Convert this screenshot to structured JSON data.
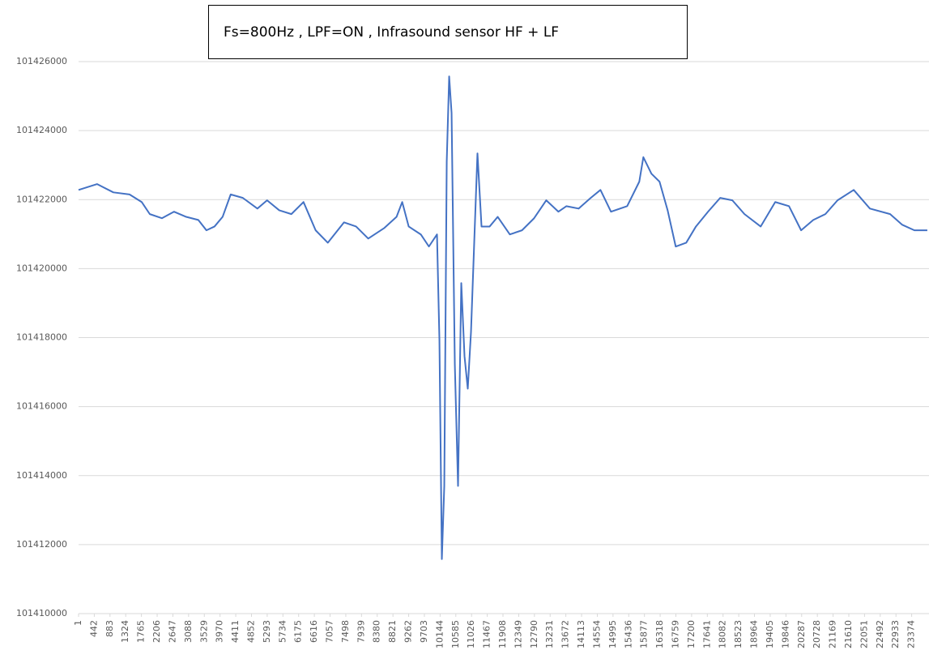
{
  "chart_data": {
    "type": "line",
    "title": "Fs=800Hz , LPF=ON , Infrasound sensor HF + LF",
    "color": "#4472c4",
    "grid": true,
    "x": [
      1,
      523,
      977,
      1431,
      1772,
      1999,
      2339,
      2680,
      3020,
      3361,
      3588,
      3815,
      4042,
      4269,
      4609,
      5018,
      5290,
      5631,
      5971,
      6312,
      6652,
      6993,
      7447,
      7787,
      8128,
      8582,
      8922,
      9081,
      9263,
      9603,
      9830,
      10057,
      10125,
      10193,
      10261,
      10330,
      10398,
      10466,
      10557,
      10647,
      10738,
      10829,
      10920,
      11011,
      11101,
      11192,
      11306,
      11533,
      11760,
      12100,
      12441,
      12781,
      13122,
      13462,
      13689,
      14030,
      14370,
      14643,
      14938,
      15392,
      15732,
      15846,
      16073,
      16300,
      16527,
      16754,
      17049,
      17321,
      17662,
      18002,
      18343,
      18683,
      19137,
      19546,
      19932,
      20272,
      20613,
      20953,
      21294,
      21748,
      22202,
      22769,
      23110,
      23450,
      23813
    ],
    "values": [
      101422280,
      101422450,
      101422210,
      101422150,
      101421930,
      101421580,
      101421460,
      101421650,
      101421500,
      101421410,
      101421110,
      101421220,
      101421500,
      101422150,
      101422050,
      101421740,
      101421980,
      101421690,
      101421580,
      101421930,
      101421110,
      101420750,
      101421340,
      101421220,
      101420870,
      101421180,
      101421500,
      101421930,
      101421220,
      101420990,
      101420640,
      101420990,
      101417930,
      101411580,
      101413700,
      101423100,
      101425570,
      101424510,
      101417220,
      101413700,
      101419580,
      101417460,
      101416520,
      101418170,
      101420750,
      101423340,
      101421220,
      101421220,
      101421500,
      101420990,
      101421110,
      101421460,
      101421980,
      101421650,
      101421810,
      101421740,
      101422050,
      101422280,
      101421650,
      101421810,
      101422520,
      101423230,
      101422750,
      101422520,
      101421690,
      101420640,
      101420750,
      101421220,
      101421650,
      101422050,
      101421980,
      101421580,
      101421220,
      101421930,
      101421810,
      101421110,
      101421410,
      101421580,
      101421980,
      101422280,
      101421740,
      101421580,
      101421270,
      101421110,
      101421110
    ],
    "xlim": [
      1,
      23860
    ],
    "xticks": [
      1,
      442,
      883,
      1324,
      1765,
      2206,
      2647,
      3088,
      3529,
      3970,
      4411,
      4852,
      5293,
      5734,
      6175,
      6616,
      7057,
      7498,
      7939,
      8380,
      8821,
      9262,
      9703,
      10144,
      10585,
      11026,
      11467,
      11908,
      12349,
      12790,
      13231,
      13672,
      14113,
      14554,
      14995,
      15436,
      15877,
      16318,
      16759,
      17200,
      17641,
      18082,
      18523,
      18964,
      19405,
      19846,
      20287,
      20728,
      21169,
      21610,
      22051,
      22492,
      22933,
      23374
    ],
    "ylim": [
      101410000,
      101426000
    ],
    "yticks": [
      101410000,
      101412000,
      101414000,
      101416000,
      101418000,
      101420000,
      101422000,
      101424000,
      101426000
    ]
  }
}
